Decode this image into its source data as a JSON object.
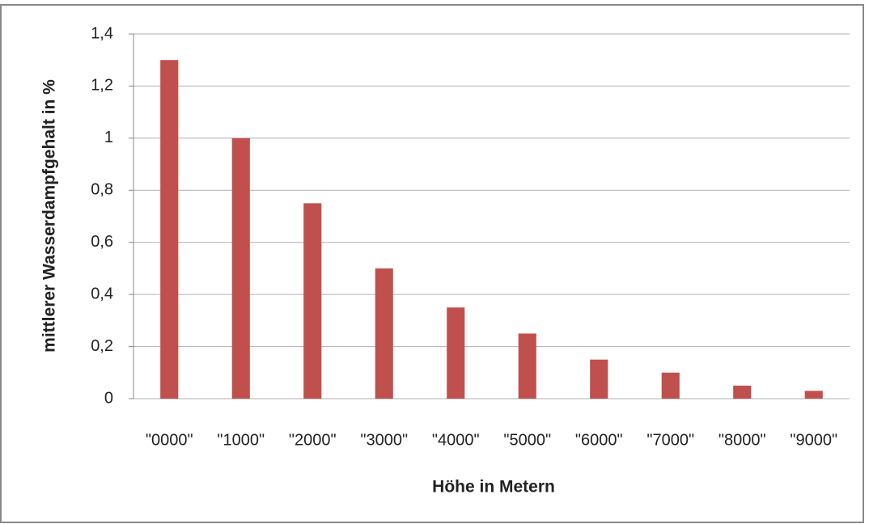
{
  "chart_data": {
    "type": "bar",
    "categories": [
      "\"0000\"",
      "\"1000\"",
      "\"2000\"",
      "\"3000\"",
      "\"4000\"",
      "\"5000\"",
      "\"6000\"",
      "\"7000\"",
      "\"8000\"",
      "\"9000\""
    ],
    "values": [
      1.3,
      1.0,
      0.75,
      0.5,
      0.35,
      0.25,
      0.15,
      0.1,
      0.05,
      0.03
    ],
    "color": "#c0504d",
    "x_label": "Höhe in Metern",
    "y_label": "mittlerer Wasserdampfgehalt in %",
    "ylim": [
      0,
      1.4
    ],
    "yticks": [
      0,
      {
        "value": 0.2,
        "label": "0,2"
      },
      {
        "value": 0.4,
        "label": "0,4"
      },
      {
        "value": 0.6,
        "label": "0,6"
      },
      {
        "value": 0.8,
        "label": "0,8"
      },
      1,
      {
        "value": 1.2,
        "label": "1,2"
      },
      {
        "value": 1.4,
        "label": "1,4"
      }
    ],
    "grid": true
  }
}
